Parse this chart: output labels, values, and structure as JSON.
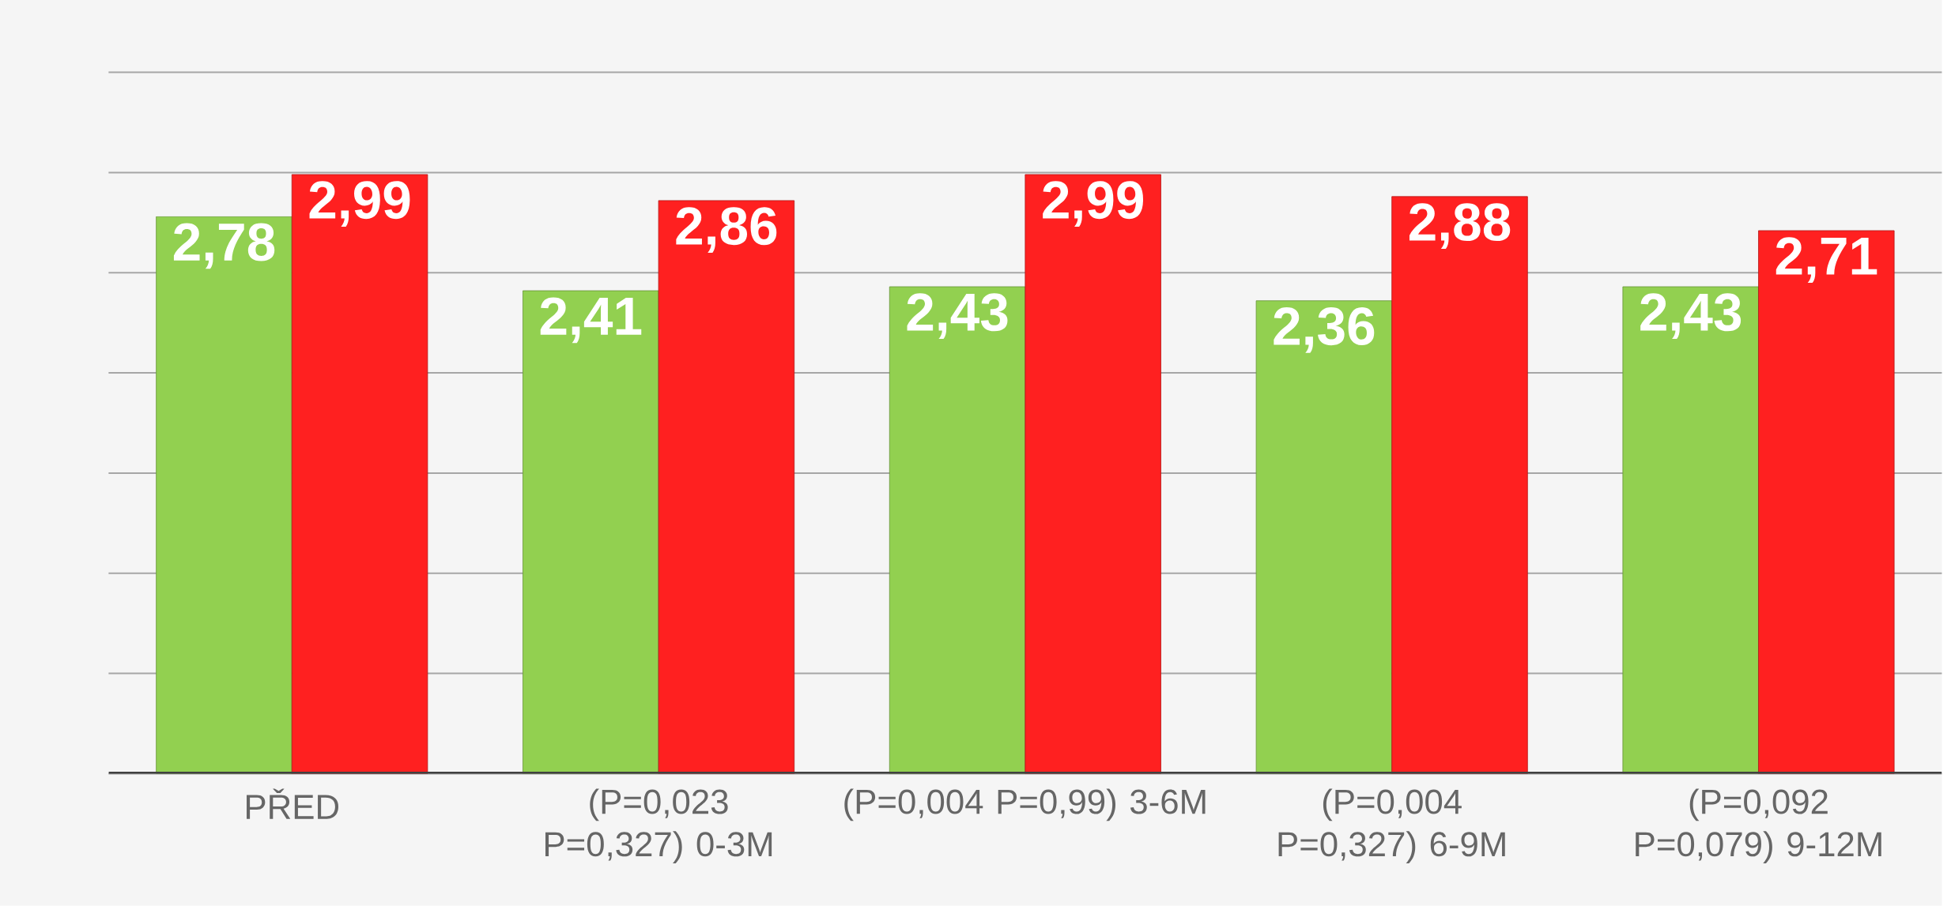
{
  "chart_data": {
    "type": "bar",
    "categories": [
      "PŘED",
      "(P=0,023 P=0,327) 0-3M",
      "(P=0,004 P=0,99) 3-6M",
      "(P=0,004 P=0,327) 6-9M",
      "(P=0,092 P=0,079) 9-12M"
    ],
    "series": [
      {
        "color": "#92d050",
        "values": [
          2.78,
          2.41,
          2.43,
          2.36,
          2.43
        ],
        "value_labels": [
          "2,78",
          "2,41",
          "2,43",
          "2,36",
          "2,43"
        ]
      },
      {
        "color": "#ff2020",
        "values": [
          2.99,
          2.86,
          2.99,
          2.88,
          2.71
        ],
        "value_labels": [
          "2,99",
          "2,86",
          "2,99",
          "2,88",
          "2,71"
        ]
      }
    ],
    "ylim": [
      0,
      3.5
    ],
    "yticks": [
      {
        "value": 0,
        "label": null
      },
      {
        "value": 0.5,
        "label": null
      },
      {
        "value": 1,
        "label": null
      },
      {
        "value": 1.5,
        "label": null
      },
      {
        "value": 2,
        "label": null
      },
      {
        "value": 2.5,
        "label": null
      },
      {
        "value": 3,
        "label": null
      },
      {
        "value": 3.5,
        "label": null
      }
    ],
    "grid": "y",
    "tick_labels": "x"
  }
}
